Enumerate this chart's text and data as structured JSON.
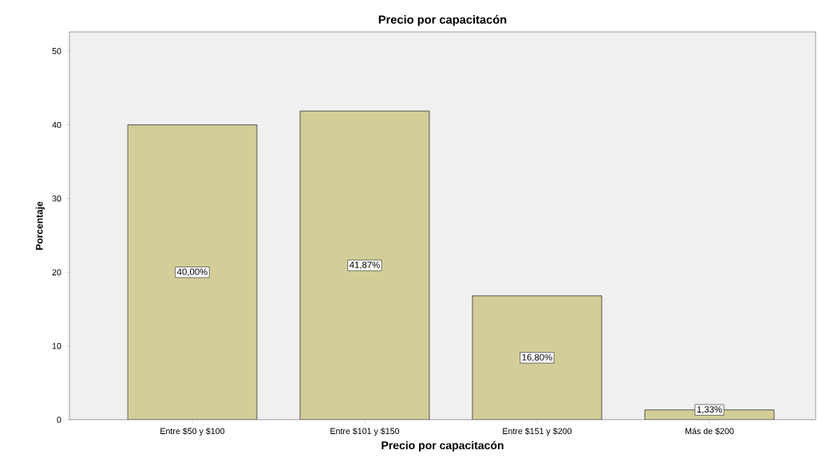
{
  "chart_data": {
    "type": "bar",
    "title": "Precio por capacitacón",
    "xlabel": "Precio por capacitacón",
    "ylabel": "Porcentaje",
    "categories": [
      "Entre $50 y $100",
      "Entre $101 y $150",
      "Entre $151 y $200",
      "Más de $200"
    ],
    "values": [
      40.0,
      41.87,
      16.8,
      1.33
    ],
    "value_labels": [
      "40,00%",
      "41,87%",
      "16,80%",
      "1,33%"
    ],
    "color": "#d3ce97",
    "ylim": [
      0,
      52.6
    ],
    "yticks": [
      0,
      10,
      20,
      30,
      40,
      50
    ],
    "grid": false
  }
}
